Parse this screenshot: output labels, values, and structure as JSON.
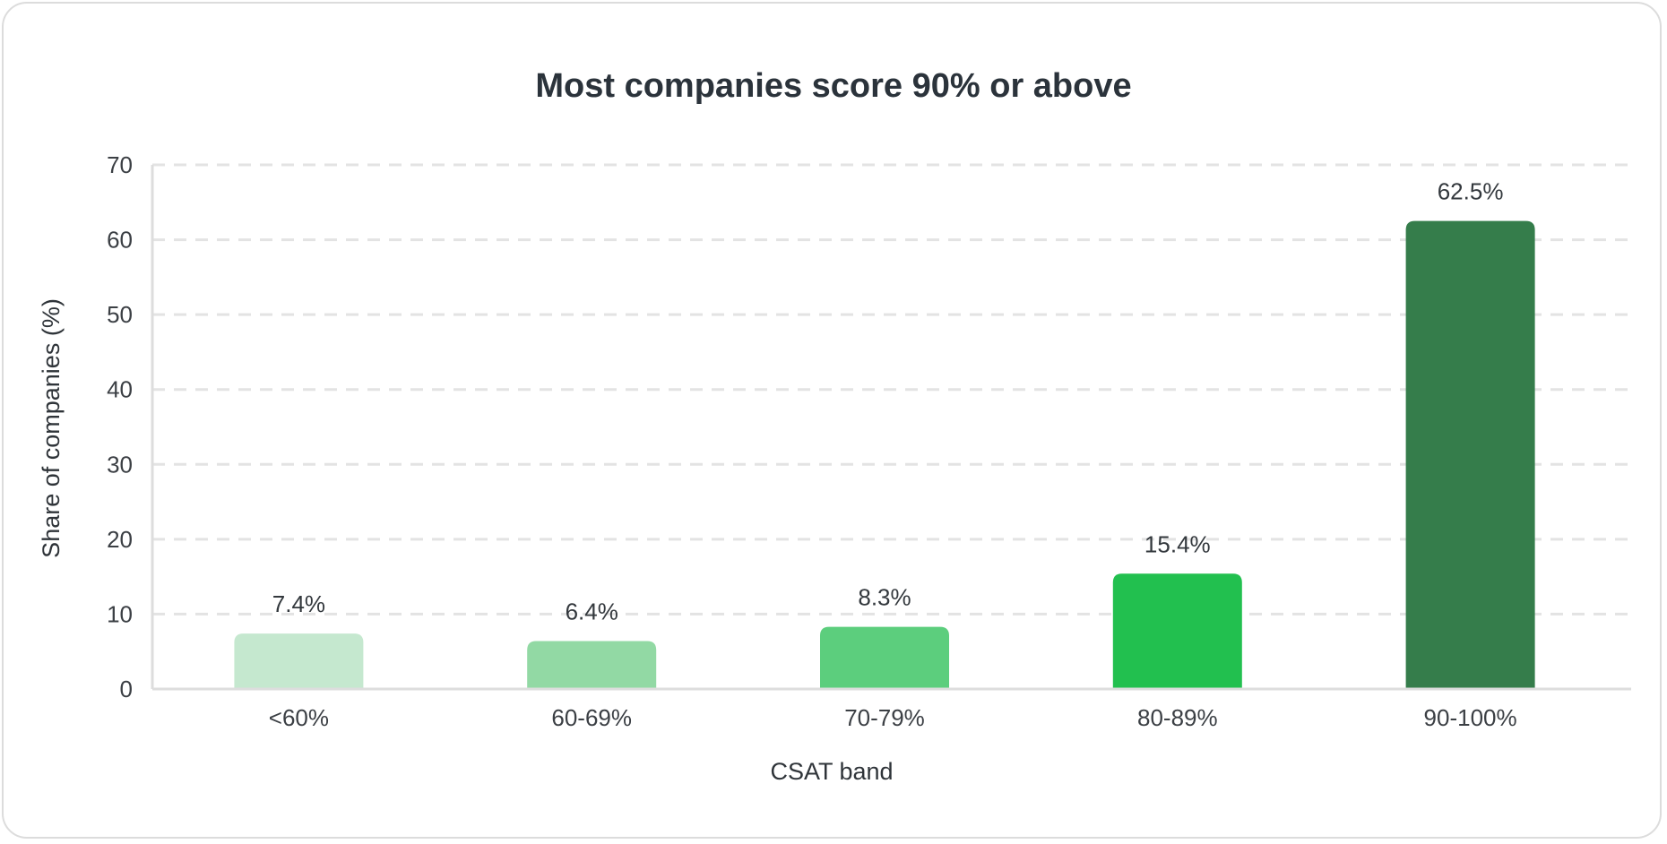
{
  "chart_data": {
    "type": "bar",
    "title": "Most companies score 90% or above",
    "xlabel": "CSAT band",
    "ylabel": "Share of companies (%)",
    "categories": [
      "<60%",
      "60-69%",
      "70-79%",
      "80-89%",
      "90-100%"
    ],
    "values": [
      7.4,
      6.4,
      8.3,
      15.4,
      62.5
    ],
    "data_labels": [
      "7.4%",
      "6.4%",
      "8.3%",
      "15.4%",
      "62.5%"
    ],
    "colors": [
      "#c5e8cf",
      "#92d9a4",
      "#5cce7d",
      "#22c04f",
      "#357d4b"
    ],
    "ylim": [
      0,
      70
    ],
    "yticks": [
      0,
      10,
      20,
      30,
      40,
      50,
      60,
      70
    ],
    "grid": true,
    "grid_color": "#e3e3e3",
    "axis_color": "#dddddd",
    "legend": "none"
  }
}
